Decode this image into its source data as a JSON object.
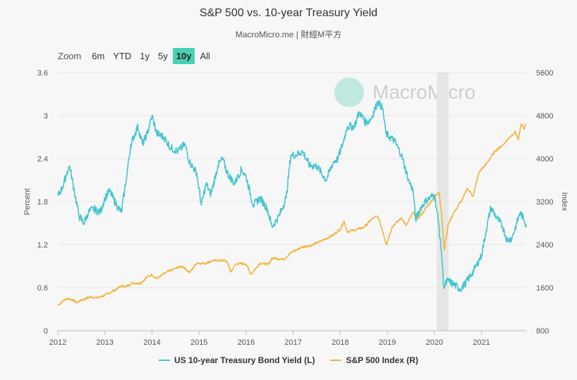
{
  "title": "S&P 500 vs. 10-year Treasury Yield",
  "subtitle": "MacroMicro.me | 財經M平方",
  "watermark": "MacroMicro",
  "zoom": {
    "label": "Zoom",
    "options": [
      "6m",
      "YTD",
      "1y",
      "5y",
      "10y",
      "All"
    ],
    "selected": "10y"
  },
  "colors": {
    "yield": "#45c5cf",
    "sp500": "#f2b43b",
    "recession": "#e6e6e6",
    "grid": "#e4e4e4"
  },
  "chart_data": {
    "type": "line",
    "title": "S&P 500 vs. 10-year Treasury Yield",
    "xlabel": "",
    "left_axis": {
      "label": "Percent",
      "range": [
        0,
        3.6
      ],
      "ticks": [
        "0",
        "0.6",
        "1.2",
        "1.8",
        "2.4",
        "3",
        "3.6"
      ]
    },
    "right_axis": {
      "label": "Index",
      "range": [
        800,
        5600
      ],
      "ticks": [
        "800",
        "1600",
        "2400",
        "3200",
        "4000",
        "4800",
        "5600"
      ]
    },
    "x_range": [
      2012.0,
      2021.95
    ],
    "x_ticks": [
      "2012",
      "2013",
      "2014",
      "2015",
      "2016",
      "2017",
      "2018",
      "2019",
      "2020",
      "2021"
    ],
    "shaded_period": {
      "label": "Recession",
      "start": 2020.05,
      "end": 2020.3
    },
    "series": [
      {
        "name": "US 10-year Treasury Bond Yield (L)",
        "axis": "left",
        "points": [
          [
            2012.0,
            1.88
          ],
          [
            2012.1,
            2.0
          ],
          [
            2012.2,
            2.22
          ],
          [
            2012.25,
            2.3
          ],
          [
            2012.35,
            1.95
          ],
          [
            2012.45,
            1.6
          ],
          [
            2012.55,
            1.5
          ],
          [
            2012.65,
            1.65
          ],
          [
            2012.75,
            1.7
          ],
          [
            2012.9,
            1.65
          ],
          [
            2013.0,
            1.85
          ],
          [
            2013.1,
            1.95
          ],
          [
            2013.25,
            1.75
          ],
          [
            2013.35,
            1.65
          ],
          [
            2013.45,
            2.1
          ],
          [
            2013.55,
            2.6
          ],
          [
            2013.7,
            2.85
          ],
          [
            2013.8,
            2.6
          ],
          [
            2013.9,
            2.75
          ],
          [
            2014.0,
            3.0
          ],
          [
            2014.1,
            2.75
          ],
          [
            2014.25,
            2.7
          ],
          [
            2014.4,
            2.55
          ],
          [
            2014.55,
            2.5
          ],
          [
            2014.7,
            2.6
          ],
          [
            2014.8,
            2.35
          ],
          [
            2014.95,
            2.2
          ],
          [
            2015.05,
            1.75
          ],
          [
            2015.15,
            2.05
          ],
          [
            2015.25,
            1.9
          ],
          [
            2015.4,
            2.3
          ],
          [
            2015.5,
            2.4
          ],
          [
            2015.6,
            2.2
          ],
          [
            2015.75,
            2.05
          ],
          [
            2015.9,
            2.25
          ],
          [
            2016.0,
            2.15
          ],
          [
            2016.15,
            1.75
          ],
          [
            2016.3,
            1.85
          ],
          [
            2016.45,
            1.7
          ],
          [
            2016.55,
            1.45
          ],
          [
            2016.7,
            1.6
          ],
          [
            2016.85,
            1.85
          ],
          [
            2016.95,
            2.45
          ],
          [
            2017.05,
            2.45
          ],
          [
            2017.2,
            2.5
          ],
          [
            2017.35,
            2.3
          ],
          [
            2017.5,
            2.3
          ],
          [
            2017.7,
            2.1
          ],
          [
            2017.85,
            2.35
          ],
          [
            2017.95,
            2.4
          ],
          [
            2018.05,
            2.6
          ],
          [
            2018.15,
            2.85
          ],
          [
            2018.3,
            2.85
          ],
          [
            2018.4,
            3.05
          ],
          [
            2018.55,
            2.9
          ],
          [
            2018.65,
            2.95
          ],
          [
            2018.8,
            3.2
          ],
          [
            2018.9,
            3.1
          ],
          [
            2018.97,
            2.75
          ],
          [
            2019.05,
            2.7
          ],
          [
            2019.15,
            2.65
          ],
          [
            2019.3,
            2.45
          ],
          [
            2019.45,
            2.1
          ],
          [
            2019.55,
            1.95
          ],
          [
            2019.6,
            1.55
          ],
          [
            2019.7,
            1.7
          ],
          [
            2019.8,
            1.8
          ],
          [
            2019.9,
            1.85
          ],
          [
            2020.0,
            1.9
          ],
          [
            2020.08,
            1.55
          ],
          [
            2020.15,
            1.1
          ],
          [
            2020.2,
            0.6
          ],
          [
            2020.28,
            0.7
          ],
          [
            2020.4,
            0.65
          ],
          [
            2020.55,
            0.58
          ],
          [
            2020.65,
            0.65
          ],
          [
            2020.8,
            0.8
          ],
          [
            2020.9,
            0.92
          ],
          [
            2021.0,
            1.05
          ],
          [
            2021.1,
            1.4
          ],
          [
            2021.2,
            1.72
          ],
          [
            2021.3,
            1.6
          ],
          [
            2021.45,
            1.45
          ],
          [
            2021.55,
            1.25
          ],
          [
            2021.65,
            1.3
          ],
          [
            2021.75,
            1.5
          ],
          [
            2021.82,
            1.65
          ],
          [
            2021.9,
            1.55
          ],
          [
            2021.95,
            1.48
          ]
        ]
      },
      {
        "name": "S&P 500 Index (R)",
        "axis": "right",
        "points": [
          [
            2012.0,
            1270
          ],
          [
            2012.1,
            1350
          ],
          [
            2012.2,
            1400
          ],
          [
            2012.3,
            1380
          ],
          [
            2012.4,
            1320
          ],
          [
            2012.5,
            1365
          ],
          [
            2012.7,
            1430
          ],
          [
            2012.85,
            1410
          ],
          [
            2013.0,
            1460
          ],
          [
            2013.2,
            1550
          ],
          [
            2013.35,
            1630
          ],
          [
            2013.45,
            1620
          ],
          [
            2013.6,
            1690
          ],
          [
            2013.75,
            1680
          ],
          [
            2013.9,
            1800
          ],
          [
            2014.0,
            1840
          ],
          [
            2014.1,
            1770
          ],
          [
            2014.3,
            1880
          ],
          [
            2014.5,
            1960
          ],
          [
            2014.65,
            2000
          ],
          [
            2014.8,
            1880
          ],
          [
            2014.95,
            2060
          ],
          [
            2015.1,
            2050
          ],
          [
            2015.3,
            2100
          ],
          [
            2015.5,
            2110
          ],
          [
            2015.6,
            2080
          ],
          [
            2015.67,
            1890
          ],
          [
            2015.8,
            2050
          ],
          [
            2016.0,
            2040
          ],
          [
            2016.1,
            1850
          ],
          [
            2016.3,
            2060
          ],
          [
            2016.48,
            2030
          ],
          [
            2016.55,
            2150
          ],
          [
            2016.8,
            2130
          ],
          [
            2016.95,
            2250
          ],
          [
            2017.2,
            2360
          ],
          [
            2017.4,
            2390
          ],
          [
            2017.6,
            2470
          ],
          [
            2017.85,
            2580
          ],
          [
            2018.0,
            2690
          ],
          [
            2018.08,
            2840
          ],
          [
            2018.15,
            2640
          ],
          [
            2018.3,
            2670
          ],
          [
            2018.5,
            2720
          ],
          [
            2018.7,
            2900
          ],
          [
            2018.8,
            2920
          ],
          [
            2018.9,
            2650
          ],
          [
            2018.98,
            2400
          ],
          [
            2019.1,
            2730
          ],
          [
            2019.3,
            2900
          ],
          [
            2019.4,
            2750
          ],
          [
            2019.55,
            3000
          ],
          [
            2019.65,
            2880
          ],
          [
            2019.8,
            3050
          ],
          [
            2019.95,
            3230
          ],
          [
            2020.1,
            3380
          ],
          [
            2020.15,
            3000
          ],
          [
            2020.21,
            2300
          ],
          [
            2020.3,
            2800
          ],
          [
            2020.45,
            3050
          ],
          [
            2020.6,
            3250
          ],
          [
            2020.7,
            3450
          ],
          [
            2020.82,
            3300
          ],
          [
            2020.95,
            3750
          ],
          [
            2021.1,
            3900
          ],
          [
            2021.3,
            4150
          ],
          [
            2021.45,
            4250
          ],
          [
            2021.6,
            4400
          ],
          [
            2021.72,
            4500
          ],
          [
            2021.78,
            4350
          ],
          [
            2021.85,
            4650
          ],
          [
            2021.9,
            4550
          ],
          [
            2021.95,
            4650
          ]
        ]
      }
    ]
  },
  "legend": [
    {
      "label": "US 10-year Treasury Bond Yield (L)",
      "color": "#45c5cf"
    },
    {
      "label": "S&P 500 Index (R)",
      "color": "#f2b43b"
    }
  ]
}
